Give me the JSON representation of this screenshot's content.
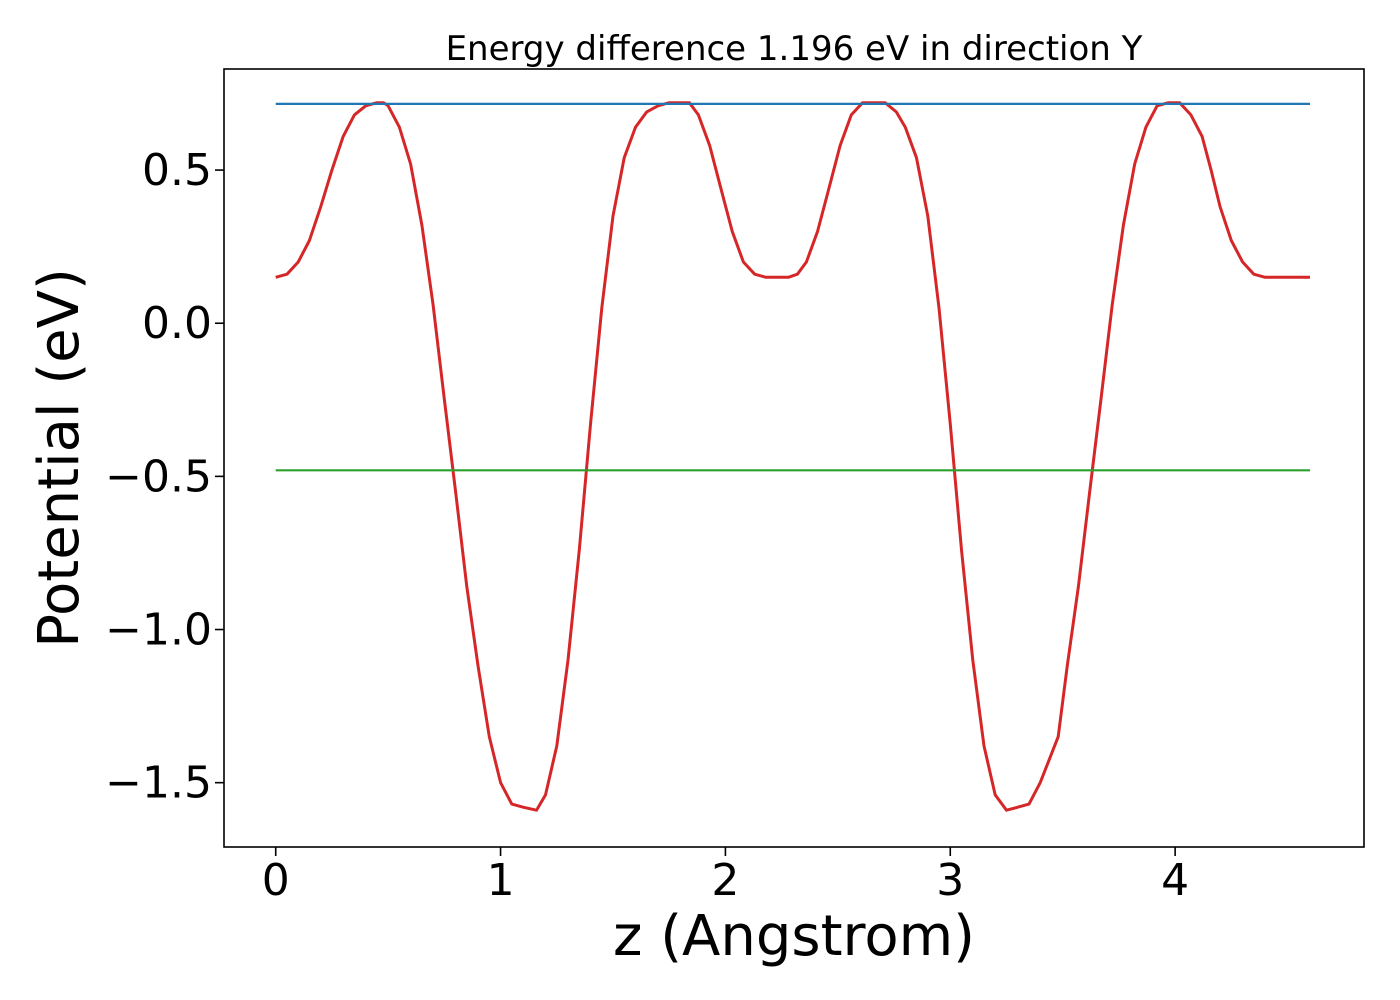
{
  "chart_data": {
    "type": "line",
    "title": "Energy difference 1.196 eV in direction Y",
    "xlabel": "z (Angstrom)",
    "ylabel": "Potential (eV)",
    "xlim": [
      -0.23,
      4.84
    ],
    "ylim": [
      -1.71,
      0.83
    ],
    "xticks": [
      0,
      1,
      2,
      3,
      4
    ],
    "xtick_labels": [
      "0",
      "1",
      "2",
      "3",
      "4"
    ],
    "yticks": [
      -1.5,
      -1.0,
      -0.5,
      0.0,
      0.5
    ],
    "ytick_labels": [
      "−1.5",
      "−1.0",
      "−0.5",
      "0.0",
      "0.5"
    ],
    "grid": false,
    "series": [
      {
        "color": "#d62728",
        "x": [
          0.0,
          0.05,
          0.1,
          0.15,
          0.2,
          0.25,
          0.3,
          0.35,
          0.4,
          0.45,
          0.48,
          0.5,
          0.55,
          0.6,
          0.65,
          0.7,
          0.75,
          0.8,
          0.85,
          0.9,
          0.95,
          1.0,
          1.05,
          1.1,
          1.16,
          1.2,
          1.25,
          1.3,
          1.35,
          1.4,
          1.45,
          1.5,
          1.55,
          1.6,
          1.65,
          1.7,
          1.75,
          1.8,
          1.84,
          1.88,
          1.93,
          1.98,
          2.03,
          2.08,
          2.13,
          2.18,
          2.23,
          2.28,
          2.32,
          2.36,
          2.41,
          2.46,
          2.51,
          2.56,
          2.61,
          2.66,
          2.71,
          2.76,
          2.8,
          2.85,
          2.9,
          2.95,
          3.0,
          3.05,
          3.1,
          3.15,
          3.2,
          3.25,
          3.3,
          3.35,
          3.4,
          3.48,
          3.52,
          3.57,
          3.62,
          3.67,
          3.72,
          3.77,
          3.82,
          3.87,
          3.92,
          3.97,
          4.02,
          4.07,
          4.12,
          4.16,
          4.2,
          4.25,
          4.3,
          4.35,
          4.4,
          4.45,
          4.5,
          4.55,
          4.6
        ],
        "values": [
          0.15,
          0.16,
          0.2,
          0.27,
          0.38,
          0.5,
          0.61,
          0.68,
          0.71,
          0.72,
          0.72,
          0.71,
          0.64,
          0.52,
          0.32,
          0.06,
          -0.25,
          -0.55,
          -0.86,
          -1.12,
          -1.35,
          -1.5,
          -1.57,
          -1.58,
          -1.59,
          -1.54,
          -1.38,
          -1.1,
          -0.74,
          -0.33,
          0.05,
          0.35,
          0.54,
          0.64,
          0.69,
          0.71,
          0.72,
          0.72,
          0.72,
          0.68,
          0.58,
          0.44,
          0.3,
          0.2,
          0.16,
          0.15,
          0.15,
          0.15,
          0.16,
          0.2,
          0.3,
          0.44,
          0.58,
          0.68,
          0.72,
          0.72,
          0.72,
          0.69,
          0.64,
          0.54,
          0.35,
          0.05,
          -0.33,
          -0.74,
          -1.1,
          -1.38,
          -1.54,
          -1.59,
          -1.58,
          -1.57,
          -1.5,
          -1.35,
          -1.12,
          -0.86,
          -0.55,
          -0.25,
          0.06,
          0.32,
          0.52,
          0.64,
          0.71,
          0.72,
          0.72,
          0.68,
          0.61,
          0.5,
          0.38,
          0.27,
          0.2,
          0.16,
          0.15,
          0.15,
          0.15,
          0.15,
          0.15
        ]
      },
      {
        "color": "#1f77b4",
        "x": [
          0.0,
          4.6
        ],
        "values": [
          0.716,
          0.716
        ]
      },
      {
        "color": "#2ca02c",
        "x": [
          0.0,
          4.6
        ],
        "values": [
          -0.48,
          -0.48
        ]
      }
    ]
  }
}
